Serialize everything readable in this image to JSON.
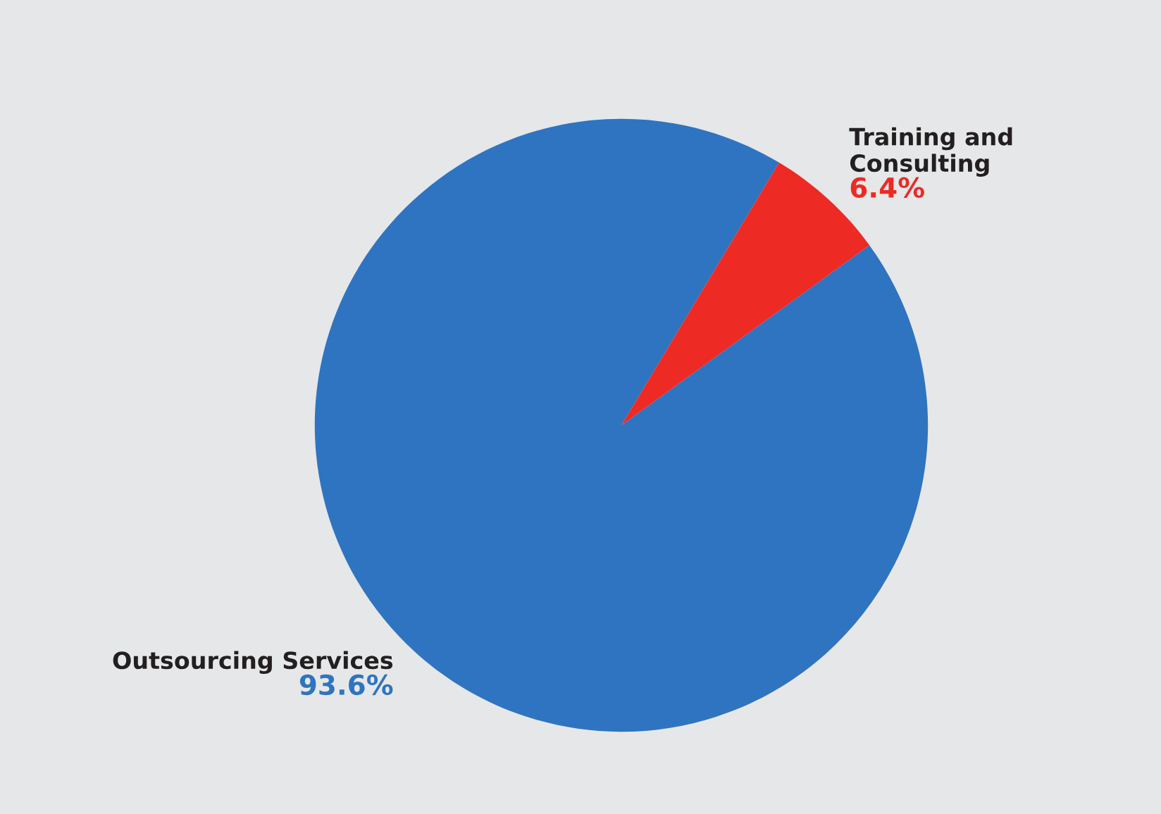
{
  "chart_data": {
    "type": "pie",
    "categories": [
      "Outsourcing Services",
      "Training and Consulting"
    ],
    "values": [
      93.6,
      6.4
    ],
    "colors": [
      "#2f74c0",
      "#ee2a24"
    ],
    "value_labels": [
      "93.6%",
      "6.4%"
    ],
    "legend": false
  }
}
